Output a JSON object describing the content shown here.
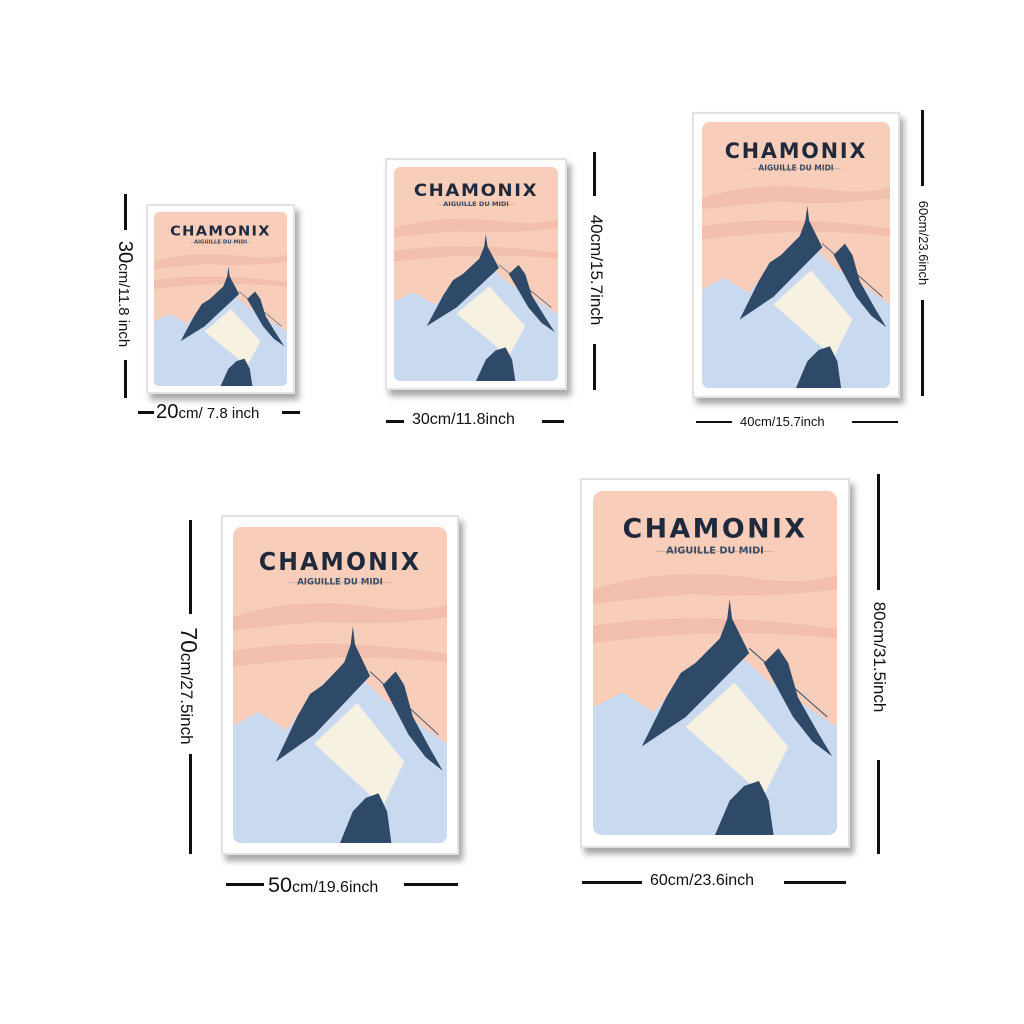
{
  "poster": {
    "title": "CHAMONIX",
    "subtitle": "AIGUILLE DU MIDI"
  },
  "sizes": [
    {
      "height_num": "30",
      "height_unit": "cm/11.8 inch",
      "width_num": "20",
      "width_unit": "cm/ 7.8 inch"
    },
    {
      "height_num": "",
      "height_unit": "40cm/15.7inch",
      "width_num": "",
      "width_unit": "30cm/11.8inch"
    },
    {
      "height_num": "",
      "height_unit": "60cm/23.6inch",
      "width_num": "",
      "width_unit": "40cm/15.7inch"
    },
    {
      "height_num": "70",
      "height_unit": "cm/27.5inch",
      "width_num": "50",
      "width_unit": "cm/19.6inch"
    },
    {
      "height_num": "",
      "height_unit": "80cm/31.5inch",
      "width_num": "",
      "width_unit": "60cm/23.6inch"
    }
  ],
  "colors": {
    "sky": "#f8cdb9",
    "cloud": "#f2bfae",
    "rock": "#2f4a68",
    "snow": "#c9daf0",
    "snow_light": "#f7f1e2"
  }
}
